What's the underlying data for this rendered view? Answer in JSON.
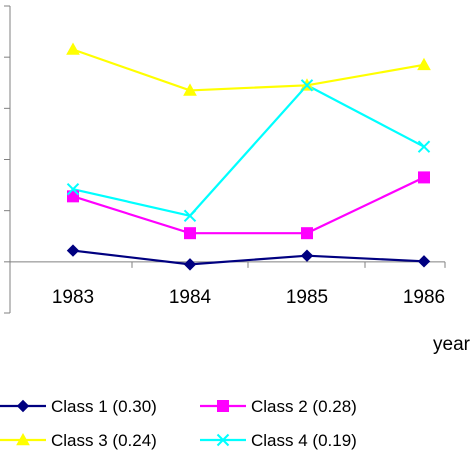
{
  "chart_data": {
    "type": "line",
    "title": "",
    "xlabel": "year",
    "ylabel": "",
    "categories": [
      "1983",
      "1984",
      "1985",
      "1986"
    ],
    "ylim": [
      -0.1,
      0.5
    ],
    "y_tick_count": 7,
    "grid": false,
    "legend_position": "bottom",
    "series": [
      {
        "name": "Class 1 (0.30)",
        "values": [
          0.022,
          -0.005,
          0.012,
          0.001
        ],
        "color": "#000080",
        "marker": "diamond"
      },
      {
        "name": "Class 2 (0.28)",
        "values": [
          0.128,
          0.056,
          0.056,
          0.165
        ],
        "color": "#ff00ff",
        "marker": "square"
      },
      {
        "name": "Class 3 (0.24)",
        "values": [
          0.415,
          0.335,
          0.345,
          0.385
        ],
        "color": "#ffff00",
        "marker": "triangle"
      },
      {
        "name": "Class 4 (0.19)",
        "values": [
          0.142,
          0.09,
          0.345,
          0.225
        ],
        "color": "#00ffff",
        "marker": "x"
      }
    ]
  }
}
